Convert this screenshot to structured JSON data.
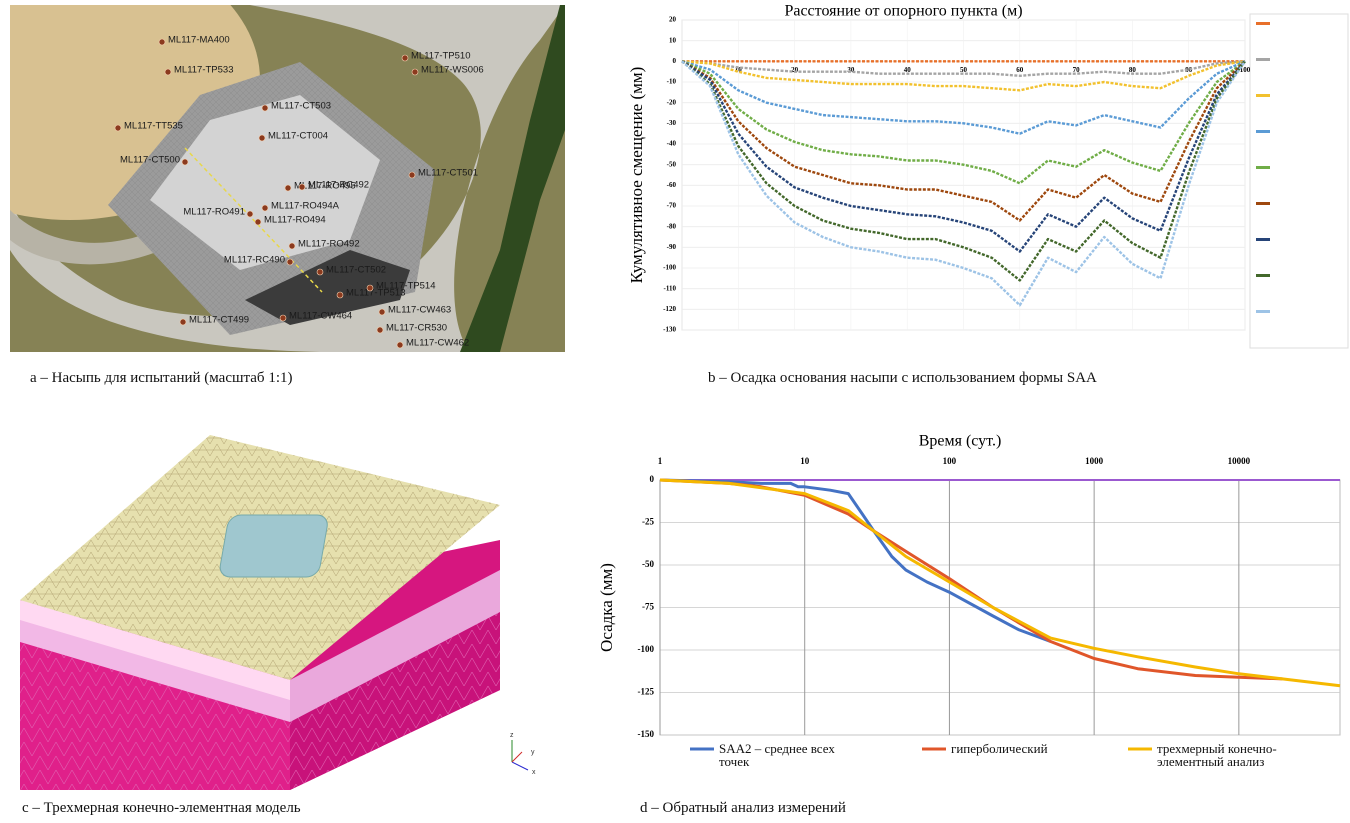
{
  "captions": [
    "a – Насыпь для испытаний (масштаб 1:1)",
    "b – Осадка основания насыпи с использованием формы SAA",
    "c – Трехмерная конечно-элементная модель",
    "d – Обратный анализ измерений"
  ],
  "map_labels": [
    "ML117-MA400",
    "ML117-TP533",
    "ML117-TT535",
    "ML117-CT503",
    "ML117-CT004",
    "ML117-CT500",
    "ML117-RO495",
    "ML117-RC492",
    "ML117-RO494A",
    "ML117-RO494",
    "ML117-RO491",
    "ML117-RO492",
    "ML117-RC490",
    "ML117-CT502",
    "ML117-TP513",
    "ML117-CT499",
    "ML117-CW464",
    "ML117-CR530",
    "ML117-CW463",
    "ML117-CW462",
    "ML117-TP510",
    "ML117-WS006",
    "ML117-CT501",
    "ML117-TP514"
  ],
  "model_axes": [
    "z",
    "y",
    "x"
  ],
  "chart_data": [
    {
      "type": "line",
      "title": "Расстояние от опорного пункта (м)",
      "y_label": "Кумулятивное смещение (мм)",
      "grid": true,
      "x": [
        0,
        5,
        10,
        15,
        20,
        25,
        30,
        35,
        40,
        45,
        50,
        55,
        60,
        65,
        70,
        75,
        80,
        85,
        90,
        95,
        100
      ],
      "xlim": [
        0,
        100
      ],
      "xticks": [
        10,
        20,
        30,
        40,
        50,
        60,
        70,
        80,
        90,
        100
      ],
      "ylim": [
        -130,
        20
      ],
      "yticks": [
        20,
        10,
        0,
        -10,
        -20,
        -30,
        -40,
        -50,
        -60,
        -70,
        -80,
        -90,
        -100,
        -110,
        -120,
        -130
      ],
      "series": [
        {
          "color": "#e8702a",
          "values": [
            0,
            0,
            0,
            0,
            0,
            0,
            0,
            0,
            0,
            0,
            0,
            0,
            0,
            0,
            0,
            0,
            0,
            0,
            0,
            0,
            0
          ]
        },
        {
          "color": "#a5a5a5",
          "values": [
            0,
            -1,
            -3,
            -4,
            -5,
            -5,
            -5,
            -6,
            -6,
            -6,
            -6,
            -6,
            -7,
            -6,
            -6,
            -5,
            -6,
            -6,
            -4,
            -1,
            0
          ]
        },
        {
          "color": "#f2c12e",
          "values": [
            0,
            -1,
            -5,
            -8,
            -9,
            -10,
            -11,
            -11,
            -11,
            -12,
            -12,
            -13,
            -14,
            -11,
            -12,
            -10,
            -12,
            -13,
            -7,
            -2,
            0
          ]
        },
        {
          "color": "#5b9bd5",
          "values": [
            0,
            -4,
            -14,
            -20,
            -23,
            -26,
            -27,
            -28,
            -29,
            -29,
            -30,
            -32,
            -35,
            -29,
            -31,
            -26,
            -29,
            -32,
            -18,
            -6,
            0
          ]
        },
        {
          "color": "#70ad47",
          "values": [
            0,
            -6,
            -23,
            -33,
            -39,
            -43,
            -45,
            -46,
            -48,
            -48,
            -50,
            -53,
            -59,
            -48,
            -51,
            -43,
            -49,
            -53,
            -30,
            -10,
            0
          ]
        },
        {
          "color": "#9e480e",
          "values": [
            0,
            -8,
            -29,
            -42,
            -51,
            -55,
            -59,
            -60,
            -62,
            -62,
            -65,
            -68,
            -77,
            -62,
            -66,
            -55,
            -64,
            -68,
            -39,
            -13,
            0
          ]
        },
        {
          "color": "#264478",
          "values": [
            0,
            -9,
            -35,
            -51,
            -61,
            -66,
            -70,
            -72,
            -74,
            -75,
            -78,
            -82,
            -92,
            -74,
            -80,
            -66,
            -76,
            -82,
            -47,
            -16,
            0
          ]
        },
        {
          "color": "#43682b",
          "values": [
            0,
            -11,
            -41,
            -59,
            -70,
            -77,
            -81,
            -83,
            -86,
            -86,
            -90,
            -95,
            -106,
            -86,
            -92,
            -77,
            -88,
            -95,
            -54,
            -18,
            0
          ]
        },
        {
          "color": "#9dc3e6",
          "values": [
            0,
            -12,
            -45,
            -65,
            -78,
            -85,
            -90,
            -92,
            -95,
            -96,
            -100,
            -105,
            -118,
            -95,
            -102,
            -85,
            -98,
            -105,
            -60,
            -20,
            0
          ]
        }
      ]
    },
    {
      "type": "line",
      "title": "Время (сут.)",
      "y_label": "Осадка (мм)",
      "x_log": true,
      "grid": true,
      "xlim": [
        1,
        50000
      ],
      "xticks": [
        1,
        10,
        100,
        1000,
        10000
      ],
      "ylim": [
        -150,
        0
      ],
      "yticks": [
        0,
        -25,
        -50,
        -75,
        -100,
        -125,
        -150
      ],
      "series": [
        {
          "name": "SAA2 – среднее всех точек",
          "color": "#4472c4",
          "x": [
            1,
            3,
            5,
            8,
            9,
            10,
            15,
            20,
            25,
            30,
            40,
            50,
            70,
            100,
            200,
            300,
            500
          ],
          "values": [
            0,
            -1,
            -2,
            -2,
            -4,
            -4,
            -6,
            -8,
            -20,
            -30,
            -45,
            -53,
            -60,
            -66,
            -80,
            -88,
            -95
          ]
        },
        {
          "name": "гиперболический",
          "color": "#e0562a",
          "x": [
            1,
            3,
            5,
            10,
            20,
            30,
            50,
            100,
            200,
            500,
            1000,
            2000,
            5000,
            10000,
            20000
          ],
          "values": [
            0,
            -2,
            -4,
            -9,
            -20,
            -30,
            -42,
            -58,
            -75,
            -95,
            -105,
            -111,
            -115,
            -116,
            -117
          ]
        },
        {
          "name": "трехмерный конечно-элементный анализ",
          "color": "#f5b800",
          "x": [
            1,
            3,
            10,
            20,
            30,
            50,
            100,
            200,
            500,
            1000,
            2000,
            5000,
            10000,
            20000,
            50000
          ],
          "values": [
            0,
            -2,
            -8,
            -18,
            -30,
            -45,
            -60,
            -75,
            -93,
            -99,
            -104,
            -110,
            -114,
            -117,
            -121
          ]
        }
      ]
    }
  ]
}
